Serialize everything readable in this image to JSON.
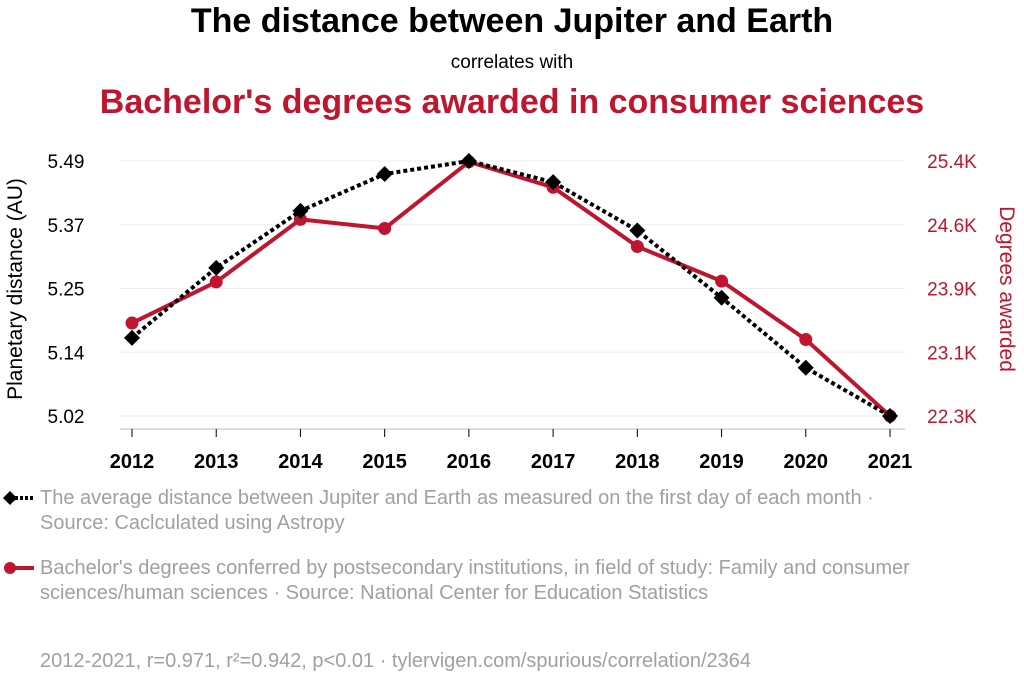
{
  "title": "The distance between Jupiter and Earth",
  "subtitle": "correlates with",
  "title2": "Bachelor's degrees awarded in consumer sciences",
  "colors": {
    "series1": "#000000",
    "series2": "#c0152f",
    "grid": "#eeeeee",
    "legend_text": "#a0a0a0"
  },
  "legend": [
    {
      "marker": "diamond-dotted-line",
      "text": "The average distance between Jupiter and Earth as measured on the first day of each month · Source: Caclculated using Astropy"
    },
    {
      "marker": "circle-solid-line",
      "text": "Bachelor's degrees conferred by postsecondary institutions, in field of study: Family and consumer sciences/human sciences · Source: National Center for Education Statistics"
    }
  ],
  "footer": "2012-2021, r=0.971, r²=0.942, p<0.01 · tylervigen.com/spurious/correlation/2364",
  "chart_data": {
    "type": "line",
    "title": "The distance between Jupiter and Earth",
    "x": [
      "2012",
      "2013",
      "2014",
      "2015",
      "2016",
      "2017",
      "2018",
      "2019",
      "2020",
      "2021"
    ],
    "xlabel": "",
    "ylabel": "Planetary distance (AU)",
    "y2label": "Degrees awarded",
    "ylim": [
      5.02,
      5.49
    ],
    "y2lim": [
      22300,
      25400
    ],
    "yticks": [
      "5.02",
      "5.14",
      "5.25",
      "5.37",
      "5.49"
    ],
    "y2ticks": [
      "22.3K",
      "23.1K",
      "23.9K",
      "24.6K",
      "25.4K"
    ],
    "grid": true,
    "series": [
      {
        "name": "The average distance between Jupiter and Earth",
        "axis": "left",
        "style": "dotted",
        "marker": "diamond",
        "values": [
          5.164,
          5.293,
          5.398,
          5.466,
          5.49,
          5.451,
          5.362,
          5.238,
          5.109,
          5.02
        ]
      },
      {
        "name": "Bachelor's degrees awarded in consumer sciences",
        "axis": "right",
        "style": "solid",
        "marker": "circle",
        "values": [
          23430,
          23930,
          24690,
          24580,
          25390,
          25080,
          24360,
          23940,
          23230,
          22300
        ]
      }
    ]
  }
}
